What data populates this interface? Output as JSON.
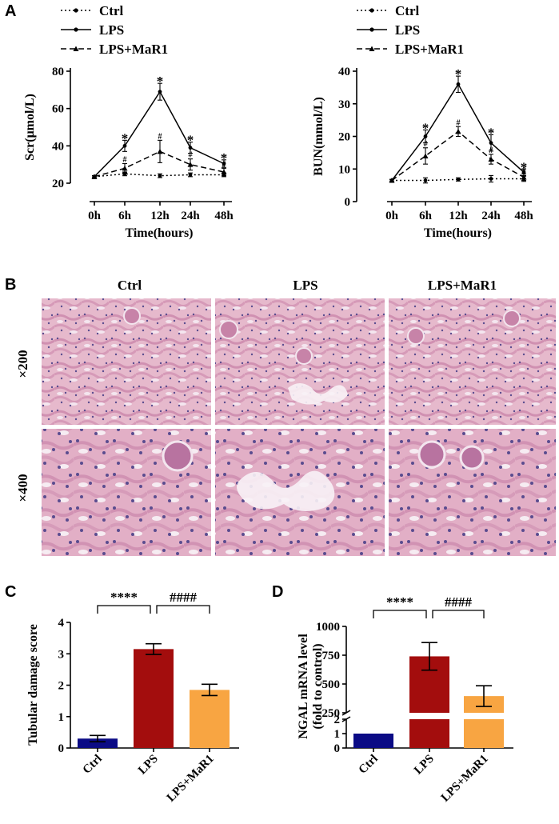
{
  "panels": {
    "A": "A",
    "B": "B",
    "C": "C",
    "D": "D"
  },
  "colors": {
    "ctrl_bar": "#0b0b85",
    "lps_bar": "#a30d0d",
    "mar1_bar": "#f8a542",
    "tissue_bg": "#e6b9cc",
    "tissue_cell": "#cf8db0",
    "tissue_nuclei": "#5a4c8f"
  },
  "histology": {
    "columns": [
      "Ctrl",
      "LPS",
      "LPS+MaR1"
    ],
    "rows": [
      "×200",
      "×400"
    ]
  },
  "chart_data": [
    {
      "id": "A-left",
      "type": "line",
      "categories": [
        "0h",
        "6h",
        "12h",
        "24h",
        "48h"
      ],
      "xlabel": "Time(hours)",
      "ylabel": "Scr(μmol/L)",
      "ylim": [
        20,
        80
      ],
      "yticks": [
        20,
        40,
        60,
        80
      ],
      "legend": "top-left",
      "series": [
        {
          "name": "Ctrl",
          "style": "dotted",
          "values": [
            23.5,
            25,
            24,
            24.5,
            24.5
          ],
          "err": [
            0.5,
            1,
            1,
            1,
            1
          ]
        },
        {
          "name": "LPS",
          "style": "solid",
          "values": [
            23.5,
            40,
            69,
            39,
            30.5
          ],
          "err": [
            0.5,
            3,
            4.5,
            3,
            2
          ]
        },
        {
          "name": "LPS+MaR1",
          "style": "dashed",
          "values": [
            23.5,
            28,
            37,
            30,
            26
          ],
          "err": [
            0.5,
            2.5,
            6,
            3,
            2
          ]
        }
      ],
      "annotations": [
        {
          "series": 1,
          "index": 1,
          "text": "*"
        },
        {
          "series": 1,
          "index": 2,
          "text": "*"
        },
        {
          "series": 1,
          "index": 3,
          "text": "*"
        },
        {
          "series": 1,
          "index": 4,
          "text": "*"
        },
        {
          "series": 2,
          "index": 1,
          "text": "#"
        },
        {
          "series": 2,
          "index": 2,
          "text": "#"
        },
        {
          "series": 2,
          "index": 3,
          "text": "#"
        },
        {
          "series": 2,
          "index": 4,
          "text": "#"
        }
      ]
    },
    {
      "id": "A-right",
      "type": "line",
      "categories": [
        "0h",
        "6h",
        "12h",
        "24h",
        "48h"
      ],
      "xlabel": "Time(hours)",
      "ylabel": "BUN(mmol/L)",
      "ylim": [
        0,
        40
      ],
      "yticks": [
        0,
        10,
        20,
        30,
        40
      ],
      "legend": "top-left",
      "series": [
        {
          "name": "Ctrl",
          "style": "dotted",
          "values": [
            6.5,
            6.5,
            6.8,
            7,
            7
          ],
          "err": [
            0.3,
            0.8,
            0.5,
            1,
            0.8
          ]
        },
        {
          "name": "LPS",
          "style": "solid",
          "values": [
            6.5,
            20,
            36,
            18,
            9
          ],
          "err": [
            0.3,
            2,
            2.5,
            2.5,
            1
          ]
        },
        {
          "name": "LPS+MaR1",
          "style": "dashed",
          "values": [
            6.5,
            14,
            21.5,
            13,
            7.5
          ],
          "err": [
            0.3,
            2.5,
            1.5,
            1.5,
            1
          ]
        }
      ],
      "annotations": [
        {
          "series": 1,
          "index": 1,
          "text": "*"
        },
        {
          "series": 1,
          "index": 2,
          "text": "*"
        },
        {
          "series": 1,
          "index": 3,
          "text": "*"
        },
        {
          "series": 1,
          "index": 4,
          "text": "*"
        },
        {
          "series": 2,
          "index": 1,
          "text": "#"
        },
        {
          "series": 2,
          "index": 2,
          "text": "#"
        },
        {
          "series": 2,
          "index": 3,
          "text": "#"
        },
        {
          "series": 2,
          "index": 4,
          "text": "#"
        }
      ]
    },
    {
      "id": "C",
      "type": "bar",
      "categories": [
        "Ctrl",
        "LPS",
        "LPS+MaR1"
      ],
      "values": [
        0.3,
        3.15,
        1.85
      ],
      "err": [
        0.1,
        0.17,
        0.18
      ],
      "ylabel": "Tubular damage score",
      "ylim": [
        0,
        4
      ],
      "yticks": [
        0,
        1,
        2,
        3,
        4
      ],
      "brackets": [
        {
          "from": 0,
          "to": 1,
          "text": "****"
        },
        {
          "from": 1,
          "to": 2,
          "text": "####"
        }
      ]
    },
    {
      "id": "D",
      "type": "bar",
      "categories": [
        "Ctrl",
        "LPS",
        "LPS+MaR1"
      ],
      "values": [
        1,
        740,
        395
      ],
      "err": [
        0,
        120,
        90
      ],
      "ylabel": "NGAL mRNA level",
      "ylabel2": "(fold to control)",
      "ylim": [
        0,
        1000
      ],
      "yticks": [
        0,
        1,
        2,
        250,
        500,
        750,
        1000
      ],
      "axis_break": [
        2,
        250
      ],
      "brackets": [
        {
          "from": 0,
          "to": 1,
          "text": "****"
        },
        {
          "from": 1,
          "to": 2,
          "text": "####"
        }
      ]
    }
  ]
}
